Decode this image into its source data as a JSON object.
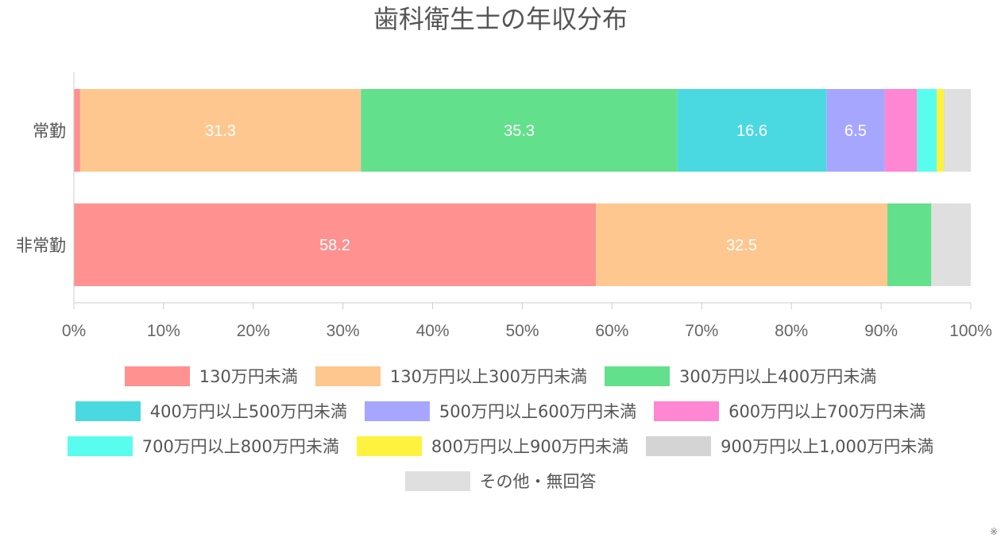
{
  "chart_data": {
    "type": "bar",
    "orientation": "horizontal",
    "stacked": true,
    "percent_stacked": true,
    "title": "歯科衛生士の年収分布",
    "categories": [
      "常勤",
      "非常勤"
    ],
    "xlim": [
      0,
      100
    ],
    "x_ticks": [
      "0%",
      "10%",
      "20%",
      "30%",
      "40%",
      "50%",
      "60%",
      "70%",
      "80%",
      "90%",
      "100%"
    ],
    "grid": false,
    "legend_position": "bottom",
    "footnote": "※",
    "series": [
      {
        "name": "130万円未満",
        "color": "#ff9191",
        "values": [
          0.7,
          58.2
        ]
      },
      {
        "name": "130万円以上300万円未満",
        "color": "#fec790",
        "values": [
          31.3,
          32.5
        ]
      },
      {
        "name": "300万円以上400万円未満",
        "color": "#63e08b",
        "values": [
          35.3,
          4.9
        ]
      },
      {
        "name": "400万円以上500万円未満",
        "color": "#4bd9e1",
        "values": [
          16.6,
          0
        ]
      },
      {
        "name": "500万円以上600万円未満",
        "color": "#a7a6ff",
        "values": [
          6.5,
          0
        ]
      },
      {
        "name": "600万円以上700万円未満",
        "color": "#ff86d2",
        "values": [
          3.6,
          0
        ]
      },
      {
        "name": "700万円以上800万円未満",
        "color": "#58fdee",
        "values": [
          2.2,
          0
        ]
      },
      {
        "name": "800万円以上900万円未満",
        "color": "#fff23e",
        "values": [
          0.8,
          0
        ]
      },
      {
        "name": "900万円以上1,000万円未満",
        "color": "#d4d4d4",
        "values": [
          0.1,
          0
        ]
      },
      {
        "name": "その他・無回答",
        "color": "#dfdfdf",
        "values": [
          2.9,
          4.4
        ]
      }
    ],
    "data_labels": [
      {
        "category_index": 0,
        "series_index": 1,
        "text": "31.3"
      },
      {
        "category_index": 0,
        "series_index": 2,
        "text": "35.3"
      },
      {
        "category_index": 0,
        "series_index": 3,
        "text": "16.6"
      },
      {
        "category_index": 0,
        "series_index": 4,
        "text": "6.5"
      },
      {
        "category_index": 1,
        "series_index": 0,
        "text": "58.2"
      },
      {
        "category_index": 1,
        "series_index": 1,
        "text": "32.5"
      }
    ]
  }
}
